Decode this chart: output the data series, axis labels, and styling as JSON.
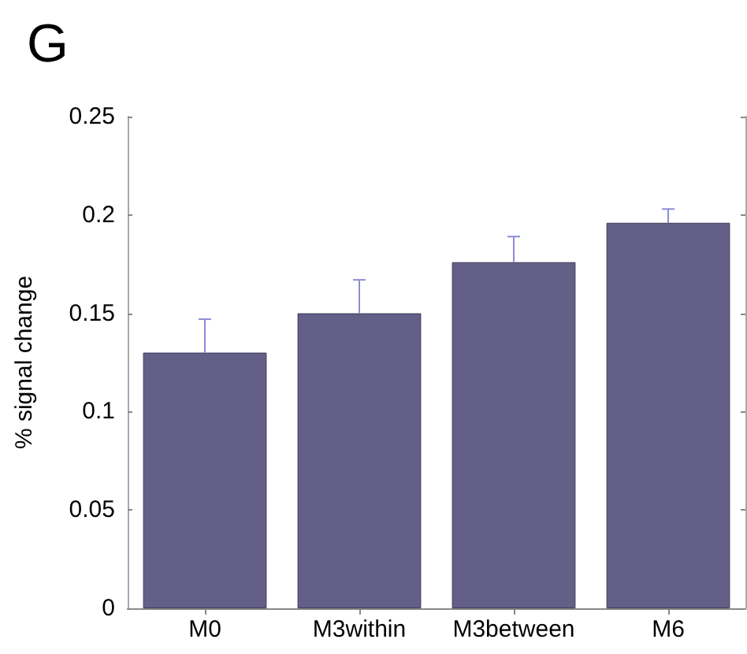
{
  "chart_data": {
    "type": "bar",
    "title": "G",
    "ylabel": "% signal change",
    "categories": [
      "M0",
      "M3within",
      "M3between",
      "M6"
    ],
    "values": [
      0.13,
      0.15,
      0.176,
      0.196
    ],
    "errors": [
      [
        0.13,
        0.147
      ],
      [
        0.15,
        0.167
      ],
      [
        0.176,
        0.189
      ],
      [
        0.196,
        0.203
      ]
    ],
    "color": "#635f86",
    "ylim": [
      0,
      0.25
    ],
    "yticks": [
      0,
      0.05,
      0.1,
      0.15,
      0.2,
      0.25
    ],
    "grid": false
  }
}
